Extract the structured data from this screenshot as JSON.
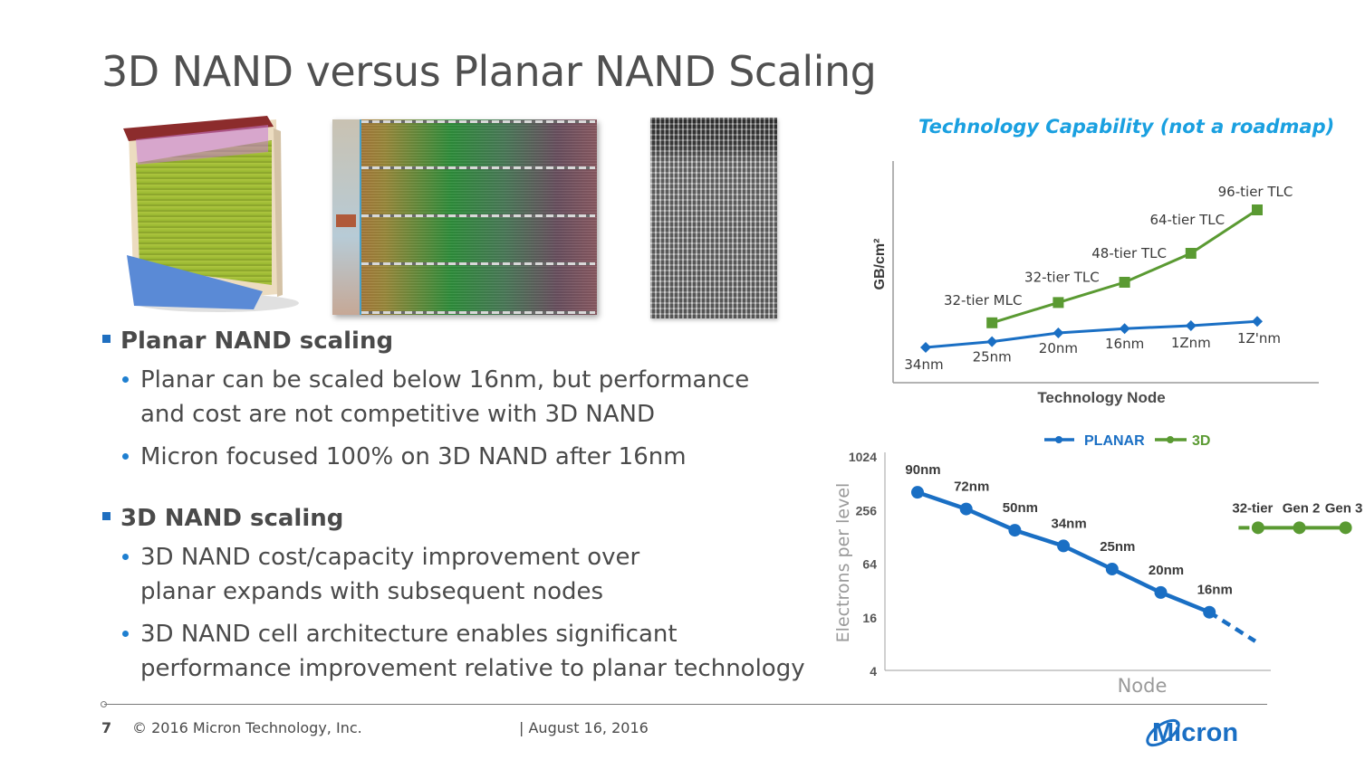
{
  "slide": {
    "title": "3D NAND versus Planar NAND Scaling",
    "images": [
      {
        "name": "3d-nand-array-illustration"
      },
      {
        "name": "planar-nand-die-photo"
      },
      {
        "name": "3d-nand-cross-section-sem"
      }
    ],
    "sections": [
      {
        "heading": "Planar NAND scaling",
        "bullets": [
          "Planar can be scaled below 16nm, but performance and cost are not competitive with 3D NAND",
          "Micron focused 100% on 3D NAND after 16nm"
        ]
      },
      {
        "heading": "3D NAND scaling",
        "bullets": [
          "3D NAND cost/capacity improvement over planar expands with subsequent nodes",
          "3D NAND  cell architecture enables significant performance improvement relative to planar technology"
        ]
      }
    ]
  },
  "footer": {
    "page_number": "7",
    "copyright": "© 2016 Micron Technology, Inc.",
    "date": "| August 16, 2016",
    "logo_text": "Micron"
  },
  "colors": {
    "planar_blue": "#1a6fc4",
    "green_3d": "#5a9a32",
    "title_cyan": "#1aa0e0",
    "text_gray": "#4a4a4a"
  },
  "chart_data": [
    {
      "type": "line",
      "title": "Technology Capability (not a roadmap)",
      "xlabel": "Technology Node",
      "ylabel": "GB/cm²",
      "yaxis_ticks": false,
      "ylim": [
        0,
        10
      ],
      "x_positions": 6,
      "series": [
        {
          "name": "Planar",
          "marker": "diamond",
          "color": "#1a6fc4",
          "points": [
            {
              "label": "34nm",
              "x": 0,
              "y": 0.5
            },
            {
              "label": "25nm",
              "x": 1,
              "y": 0.9
            },
            {
              "label": "20nm",
              "x": 2,
              "y": 1.5
            },
            {
              "label": "16nm",
              "x": 3,
              "y": 1.8
            },
            {
              "label": "1Znm",
              "x": 4,
              "y": 2.0
            },
            {
              "label": "1Z'nm",
              "x": 5,
              "y": 2.3
            }
          ]
        },
        {
          "name": "3D",
          "marker": "square",
          "color": "#5a9a32",
          "points": [
            {
              "label": "32-tier MLC",
              "x": 1,
              "y": 2.2
            },
            {
              "label": "32-tier TLC",
              "x": 2,
              "y": 3.6
            },
            {
              "label": "48-tier TLC",
              "x": 3,
              "y": 5.0
            },
            {
              "label": "64-tier TLC",
              "x": 4,
              "y": 7.0
            },
            {
              "label": "96-tier TLC",
              "x": 5,
              "y": 10.0
            }
          ]
        }
      ]
    },
    {
      "type": "line",
      "title": "",
      "xlabel": "Node",
      "ylabel": "Electrons per level",
      "yscale": "log2",
      "ylim": [
        4,
        1024
      ],
      "yticks": [
        4,
        16,
        64,
        256,
        1024
      ],
      "legend": {
        "placement": "top-center",
        "entries": [
          {
            "name": "PLANAR",
            "color": "#1a6fc4"
          },
          {
            "name": "3D",
            "color": "#5a9a32"
          }
        ]
      },
      "series": [
        {
          "name": "PLANAR",
          "color": "#1a6fc4",
          "points": [
            {
              "label": "90nm",
              "x": 0,
              "y": 400
            },
            {
              "label": "72nm",
              "x": 1,
              "y": 260
            },
            {
              "label": "50nm",
              "x": 2,
              "y": 150
            },
            {
              "label": "34nm",
              "x": 3,
              "y": 100
            },
            {
              "label": "25nm",
              "x": 4,
              "y": 55
            },
            {
              "label": "20nm",
              "x": 5,
              "y": 30
            },
            {
              "label": "16nm",
              "x": 6,
              "y": 18
            }
          ],
          "extrapolation": {
            "style": "dashed",
            "to": {
              "x": 7,
              "y": 8.5
            }
          }
        },
        {
          "name": "3D",
          "color": "#5a9a32",
          "points": [
            {
              "label": "32-tier",
              "x": 7,
              "y": 160
            },
            {
              "label": "Gen 2",
              "x": 7.85,
              "y": 160
            },
            {
              "label": "Gen 3",
              "x": 8.8,
              "y": 160
            }
          ],
          "lead_in": {
            "style": "dashed",
            "from": {
              "x": 6.6,
              "y": 160
            }
          }
        }
      ],
      "x_range": [
        -0.2,
        9.0
      ]
    }
  ]
}
